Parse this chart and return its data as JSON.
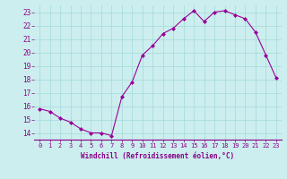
{
  "x": [
    0,
    1,
    2,
    3,
    4,
    5,
    6,
    7,
    8,
    9,
    10,
    11,
    12,
    13,
    14,
    15,
    16,
    17,
    18,
    19,
    20,
    21,
    22,
    23
  ],
  "y": [
    15.8,
    15.6,
    15.1,
    14.8,
    14.3,
    14.0,
    14.0,
    13.8,
    16.7,
    17.8,
    19.8,
    20.5,
    21.4,
    21.8,
    22.5,
    23.1,
    22.3,
    23.0,
    23.1,
    22.8,
    22.5,
    21.5,
    19.8,
    18.1
  ],
  "xlabel": "Windchill (Refroidissement éolien,°C)",
  "xlim": [
    -0.5,
    23.5
  ],
  "ylim": [
    13.5,
    23.5
  ],
  "yticks": [
    14,
    15,
    16,
    17,
    18,
    19,
    20,
    21,
    22,
    23
  ],
  "xticks": [
    0,
    1,
    2,
    3,
    4,
    5,
    6,
    7,
    8,
    9,
    10,
    11,
    12,
    13,
    14,
    15,
    16,
    17,
    18,
    19,
    20,
    21,
    22,
    23
  ],
  "line_color": "#990099",
  "marker_color": "#990099",
  "bg_color": "#cceeee",
  "grid_color": "#aadddd",
  "text_color": "#880088",
  "axis_line_color": "#880088"
}
